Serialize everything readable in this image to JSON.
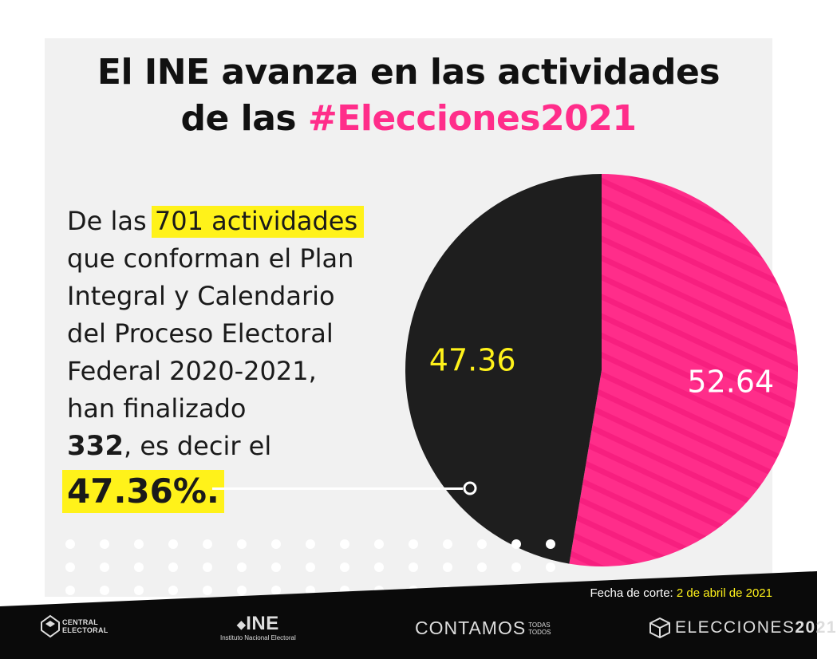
{
  "header": {
    "title_line1": "El INE avanza en las actividades",
    "title_line2_prefix": "de las ",
    "title_line2_hashtag": "#Elecciones2021"
  },
  "body": {
    "line1_prefix": "De las ",
    "line1_highlight": "701 actividades",
    "line2": "que conforman el Plan",
    "line3": "Integral y Calendario",
    "line4": "del Proceso Electoral",
    "line5": "Federal 2020-2021,",
    "line6": "han finalizado",
    "line7_number": "332",
    "line7_rest": ", es decir el",
    "line8_percent": "47.36%."
  },
  "chart_data": {
    "type": "pie",
    "title": "",
    "slices": [
      {
        "label": "",
        "value": 52.64,
        "display": "52.64",
        "color": "#ff2d8a",
        "label_color": "#ffffff",
        "pattern": "diagonal-stripes"
      },
      {
        "label": "",
        "value": 47.36,
        "display": "47.36",
        "color": "#1e1e1e",
        "label_color": "#fff21a"
      }
    ],
    "start": "top",
    "direction": "clockwise"
  },
  "footer": {
    "cutoff_label": "Fecha de corte: ",
    "cutoff_date": "2 de abril de 2021",
    "logos": {
      "central_electoral": [
        "CENTRAL",
        "ELECTORAL"
      ],
      "ine_big": "INE",
      "ine_small": "Instituto Nacional Electoral",
      "contamos": "CONTAMOS",
      "contamos_small": [
        "TODAS",
        "TODOS"
      ],
      "elecciones": "ELECCIONES",
      "elecciones_year": "2021"
    }
  },
  "colors": {
    "accent_pink": "#ff2d8a",
    "highlight_yellow": "#fff21a",
    "dark": "#111111",
    "panel_bg": "#f1f1f1"
  }
}
